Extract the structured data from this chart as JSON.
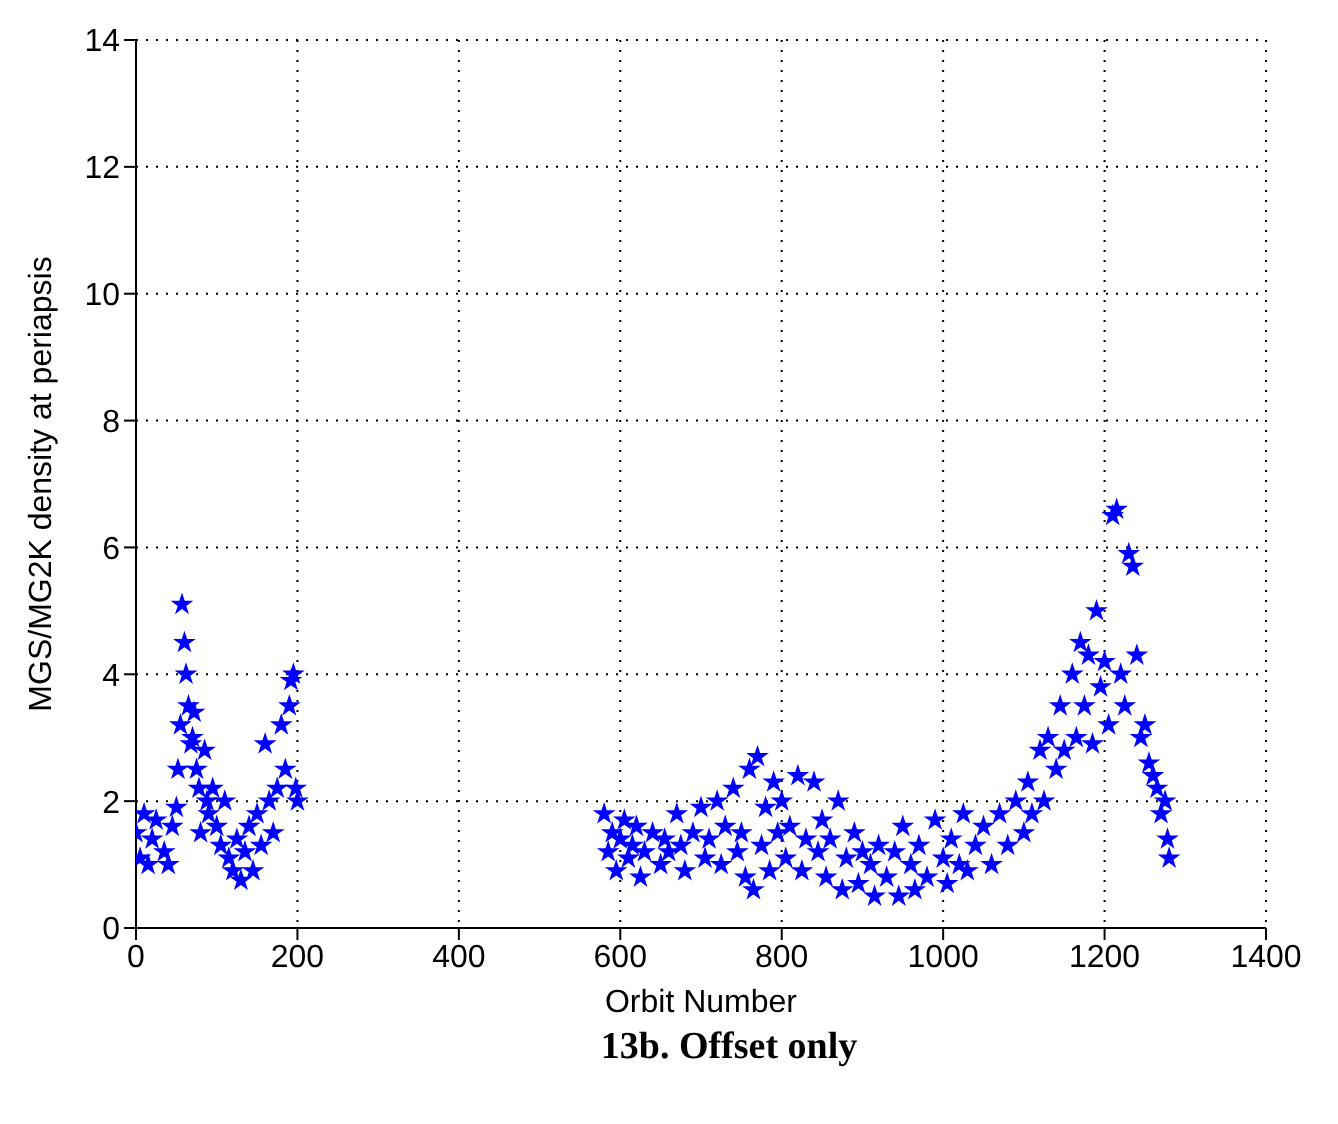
{
  "chart_data": {
    "type": "scatter",
    "title": "13b. Offset only",
    "xlabel": "Orbit Number",
    "ylabel": "MGS/MG2K density at periapsis",
    "xlim": [
      0,
      1400
    ],
    "xticks": [
      0,
      200,
      400,
      600,
      800,
      1000,
      1200,
      1400
    ],
    "ylim": [
      0,
      14
    ],
    "yticks": [
      0,
      2,
      4,
      6,
      8,
      10,
      12,
      14
    ],
    "grid": true,
    "marker": "star",
    "series": [
      {
        "color": "#0000ff",
        "x": [
          0,
          5,
          10,
          15,
          20,
          25,
          35,
          40,
          45,
          50,
          52,
          55,
          57,
          60,
          62,
          65,
          68,
          70,
          72,
          75,
          78,
          80,
          85,
          88,
          90,
          95,
          100,
          105,
          110,
          115,
          120,
          125,
          130,
          135,
          140,
          145,
          150,
          155,
          160,
          165,
          170,
          175,
          180,
          185,
          190,
          192,
          195,
          198,
          200,
          580,
          585,
          590,
          595,
          600,
          605,
          610,
          615,
          620,
          625,
          630,
          640,
          650,
          655,
          660,
          670,
          675,
          680,
          690,
          700,
          705,
          710,
          720,
          725,
          730,
          740,
          745,
          750,
          755,
          760,
          765,
          770,
          775,
          780,
          785,
          790,
          795,
          800,
          805,
          810,
          820,
          825,
          830,
          840,
          845,
          850,
          855,
          860,
          870,
          875,
          880,
          890,
          895,
          900,
          910,
          915,
          920,
          930,
          940,
          945,
          950,
          960,
          965,
          970,
          980,
          990,
          1000,
          1005,
          1010,
          1020,
          1025,
          1030,
          1040,
          1050,
          1060,
          1070,
          1080,
          1090,
          1100,
          1105,
          1110,
          1120,
          1125,
          1130,
          1140,
          1145,
          1150,
          1160,
          1165,
          1170,
          1175,
          1180,
          1185,
          1190,
          1195,
          1200,
          1205,
          1210,
          1215,
          1220,
          1225,
          1230,
          1235,
          1240,
          1245,
          1250,
          1255,
          1260,
          1265,
          1270,
          1275,
          1278,
          1280
        ],
        "values": [
          1.5,
          1.1,
          1.8,
          1.0,
          1.4,
          1.7,
          1.2,
          1.0,
          1.6,
          1.9,
          2.5,
          3.2,
          5.1,
          4.5,
          4.0,
          3.5,
          2.9,
          3.0,
          3.4,
          2.5,
          2.2,
          1.5,
          2.8,
          2.0,
          1.8,
          2.2,
          1.6,
          1.3,
          2.0,
          1.1,
          0.9,
          1.4,
          0.75,
          1.2,
          1.6,
          0.9,
          1.8,
          1.3,
          2.9,
          2.0,
          1.5,
          2.2,
          3.2,
          2.5,
          3.5,
          3.9,
          4.0,
          2.2,
          2.0,
          1.8,
          1.2,
          1.5,
          0.9,
          1.4,
          1.7,
          1.1,
          1.3,
          1.6,
          0.8,
          1.2,
          1.5,
          1.0,
          1.4,
          1.2,
          1.8,
          1.3,
          0.9,
          1.5,
          1.9,
          1.1,
          1.4,
          2.0,
          1.0,
          1.6,
          2.2,
          1.2,
          1.5,
          0.8,
          2.5,
          0.6,
          2.7,
          1.3,
          1.9,
          0.9,
          2.3,
          1.5,
          2.0,
          1.1,
          1.6,
          2.4,
          0.9,
          1.4,
          2.3,
          1.2,
          1.7,
          0.8,
          1.4,
          2.0,
          0.6,
          1.1,
          1.5,
          0.7,
          1.2,
          1.0,
          0.5,
          1.3,
          0.8,
          1.2,
          0.5,
          1.6,
          1.0,
          0.6,
          1.3,
          0.8,
          1.7,
          1.1,
          0.7,
          1.4,
          1.0,
          1.8,
          0.9,
          1.3,
          1.6,
          1.0,
          1.8,
          1.3,
          2.0,
          1.5,
          2.3,
          1.8,
          2.8,
          2.0,
          3.0,
          2.5,
          3.5,
          2.8,
          4.0,
          3.0,
          4.5,
          3.5,
          4.3,
          2.9,
          5.0,
          3.8,
          4.2,
          3.2,
          6.5,
          6.6,
          4.0,
          3.5,
          5.9,
          5.7,
          4.3,
          3.0,
          3.2,
          2.6,
          2.4,
          2.2,
          1.8,
          2.0,
          1.4,
          1.1
        ]
      }
    ]
  }
}
